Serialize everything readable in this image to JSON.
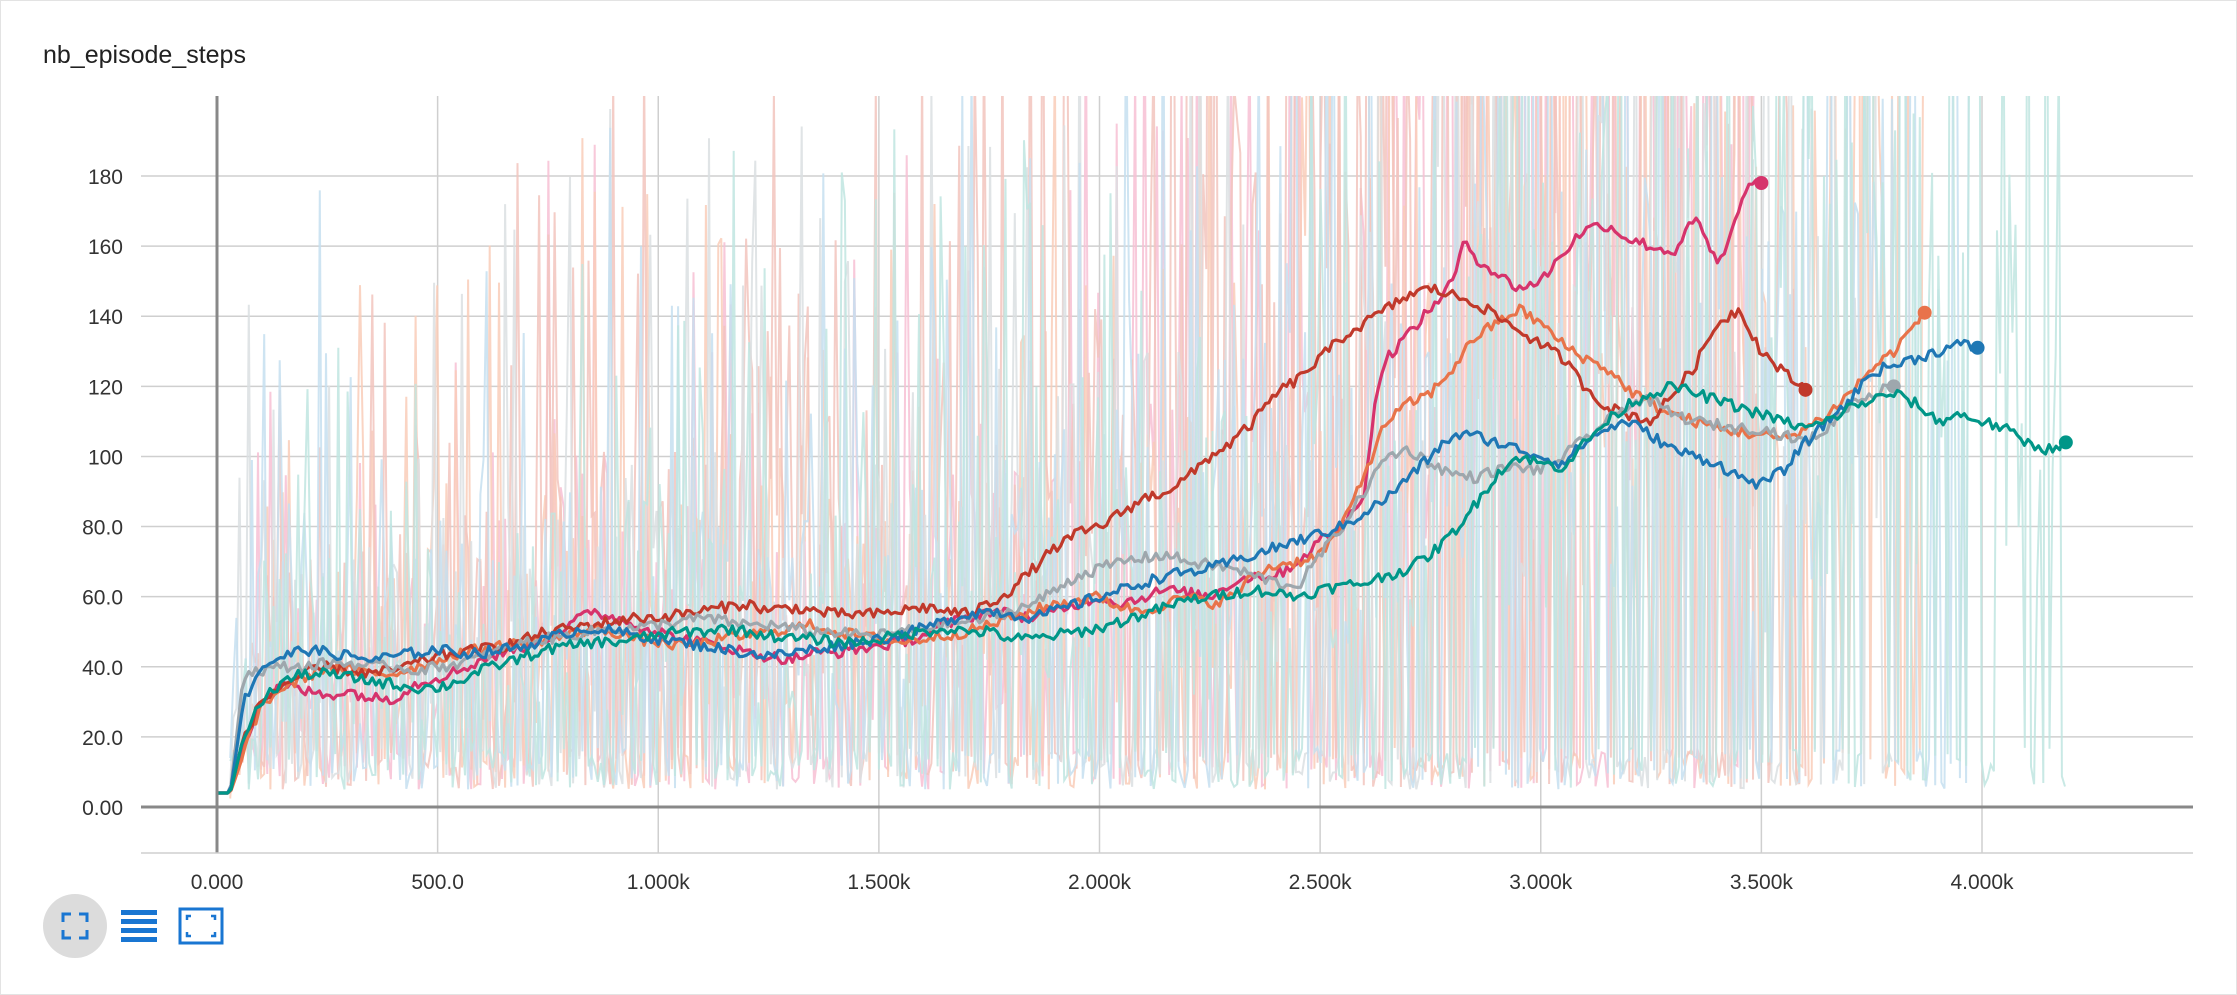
{
  "card": {
    "title": "nb_episode_steps"
  },
  "toolbar": {
    "buttons": [
      {
        "icon": "fullscreen-icon",
        "active": true
      },
      {
        "icon": "list-icon",
        "active": false
      },
      {
        "icon": "fit-domain-icon",
        "active": false
      }
    ],
    "icon_color": "#1976d2"
  },
  "chart_data": {
    "type": "line",
    "title": "nb_episode_steps",
    "xlabel": "",
    "ylabel": "",
    "xlim": [
      -150,
      4500
    ],
    "ylim": [
      -13,
      202
    ],
    "x_ticks": [
      0,
      500,
      1000,
      1500,
      2000,
      2500,
      3000,
      3500,
      4000
    ],
    "x_tick_labels": [
      "0.000",
      "500.0",
      "1.000k",
      "1.500k",
      "2.000k",
      "2.500k",
      "3.000k",
      "3.500k",
      "4.000k"
    ],
    "y_ticks": [
      0,
      20,
      40,
      60,
      80,
      100,
      120,
      140,
      160,
      180
    ],
    "y_tick_labels": [
      "0.00",
      "20.0",
      "40.0",
      "60.0",
      "80.0",
      "100",
      "120",
      "140",
      "160",
      "180"
    ],
    "grid": true,
    "legend": "none",
    "series": [
      {
        "color": "#d6336c",
        "raw_color": "#f7bfd3",
        "x": [
          0,
          30,
          60,
          100,
          150,
          200,
          250,
          300,
          350,
          400,
          450,
          500,
          550,
          600,
          650,
          700,
          750,
          800,
          850,
          900,
          950,
          1000,
          1050,
          1100,
          1150,
          1200,
          1250,
          1300,
          1350,
          1400,
          1450,
          1500,
          1550,
          1600,
          1650,
          1700,
          1750,
          1800,
          1850,
          1900,
          1950,
          2000,
          2050,
          2100,
          2150,
          2200,
          2250,
          2300,
          2350,
          2400,
          2450,
          2500,
          2550,
          2600,
          2630,
          2650,
          2700,
          2750,
          2800,
          2830,
          2850,
          2900,
          2950,
          3000,
          3050,
          3100,
          3150,
          3200,
          3250,
          3300,
          3350,
          3400,
          3420,
          3450,
          3480,
          3500
        ],
        "y": [
          4,
          4,
          18,
          30,
          35,
          33,
          32,
          33,
          31,
          31,
          35,
          37,
          39,
          42,
          44,
          46,
          48,
          52,
          56,
          54,
          52,
          50,
          48,
          47,
          46,
          44,
          43,
          42,
          44,
          44,
          45,
          46,
          47,
          49,
          52,
          54,
          56,
          55,
          54,
          56,
          58,
          60,
          58,
          60,
          62,
          61,
          60,
          64,
          66,
          66,
          70,
          76,
          80,
          90,
          120,
          128,
          135,
          142,
          150,
          162,
          157,
          152,
          148,
          150,
          158,
          165,
          166,
          162,
          160,
          158,
          168,
          155,
          158,
          172,
          178,
          178
        ]
      },
      {
        "color": "#e8734a",
        "raw_color": "#f9cdb8",
        "x": [
          0,
          30,
          60,
          100,
          150,
          200,
          250,
          300,
          350,
          400,
          450,
          500,
          550,
          600,
          650,
          700,
          750,
          800,
          850,
          900,
          950,
          1000,
          1050,
          1100,
          1150,
          1200,
          1250,
          1300,
          1350,
          1400,
          1450,
          1500,
          1550,
          1600,
          1650,
          1700,
          1750,
          1800,
          1850,
          1900,
          1950,
          2000,
          2050,
          2100,
          2150,
          2200,
          2250,
          2300,
          2350,
          2400,
          2450,
          2500,
          2550,
          2600,
          2650,
          2700,
          2750,
          2800,
          2850,
          2900,
          2950,
          3000,
          3050,
          3100,
          3150,
          3200,
          3250,
          3300,
          3350,
          3400,
          3450,
          3500,
          3550,
          3600,
          3650,
          3700,
          3750,
          3800,
          3850,
          3870
        ],
        "y": [
          4,
          4,
          15,
          29,
          34,
          37,
          40,
          39,
          38,
          38,
          40,
          42,
          44,
          45,
          46,
          47,
          48,
          49,
          51,
          50,
          48,
          47,
          46,
          47,
          48,
          49,
          50,
          51,
          52,
          50,
          49,
          48,
          47,
          48,
          49,
          50,
          52,
          54,
          56,
          58,
          59,
          60,
          57,
          56,
          58,
          60,
          58,
          60,
          66,
          69,
          70,
          72,
          80,
          95,
          110,
          115,
          118,
          125,
          134,
          138,
          142,
          138,
          132,
          128,
          125,
          119,
          115,
          112,
          110,
          108,
          107,
          106,
          105,
          108,
          112,
          118,
          125,
          130,
          138,
          141
        ]
      },
      {
        "color": "#c0392b",
        "raw_color": "#f2c4bd",
        "x": [
          0,
          30,
          60,
          100,
          150,
          200,
          250,
          300,
          350,
          400,
          450,
          500,
          550,
          600,
          650,
          700,
          750,
          800,
          850,
          900,
          950,
          1000,
          1050,
          1100,
          1150,
          1200,
          1250,
          1300,
          1350,
          1400,
          1450,
          1500,
          1550,
          1600,
          1650,
          1700,
          1750,
          1800,
          1850,
          1900,
          1950,
          2000,
          2050,
          2100,
          2150,
          2200,
          2250,
          2300,
          2350,
          2400,
          2450,
          2500,
          2550,
          2600,
          2650,
          2700,
          2750,
          2800,
          2850,
          2900,
          2950,
          3000,
          3050,
          3100,
          3150,
          3200,
          3250,
          3300,
          3350,
          3400,
          3450,
          3500,
          3550,
          3600
        ],
        "y": [
          4,
          4,
          20,
          30,
          35,
          38,
          40,
          39,
          38,
          39,
          41,
          43,
          44,
          45,
          46,
          48,
          50,
          51,
          52,
          53,
          54,
          54,
          55,
          56,
          57,
          58,
          56,
          57,
          56,
          55,
          55,
          55,
          56,
          57,
          56,
          55,
          58,
          62,
          68,
          74,
          78,
          80,
          84,
          88,
          90,
          94,
          100,
          104,
          110,
          118,
          122,
          128,
          134,
          138,
          142,
          146,
          148,
          146,
          144,
          140,
          136,
          132,
          128,
          120,
          114,
          112,
          110,
          118,
          126,
          138,
          142,
          130,
          124,
          119
        ]
      },
      {
        "color": "#9ea7ad",
        "raw_color": "#dadfe2",
        "x": [
          0,
          30,
          60,
          100,
          150,
          200,
          250,
          300,
          350,
          400,
          450,
          500,
          550,
          600,
          650,
          700,
          750,
          800,
          850,
          900,
          950,
          1000,
          1050,
          1100,
          1150,
          1200,
          1250,
          1300,
          1350,
          1400,
          1450,
          1500,
          1550,
          1600,
          1650,
          1700,
          1750,
          1800,
          1850,
          1900,
          1950,
          2000,
          2050,
          2100,
          2150,
          2200,
          2250,
          2300,
          2350,
          2400,
          2450,
          2500,
          2550,
          2600,
          2650,
          2700,
          2750,
          2800,
          2850,
          2900,
          2950,
          3000,
          3050,
          3100,
          3150,
          3200,
          3250,
          3300,
          3350,
          3400,
          3450,
          3500,
          3550,
          3600,
          3650,
          3700,
          3750,
          3800
        ],
        "y": [
          4,
          4,
          38,
          39,
          40,
          40,
          41,
          41,
          40,
          40,
          39,
          40,
          41,
          43,
          45,
          47,
          48,
          49,
          50,
          51,
          51,
          52,
          53,
          54,
          53,
          52,
          52,
          51,
          50,
          50,
          49,
          49,
          50,
          51,
          52,
          53,
          54,
          56,
          58,
          62,
          66,
          68,
          70,
          71,
          72,
          70,
          69,
          68,
          66,
          64,
          63,
          72,
          80,
          90,
          100,
          102,
          98,
          95,
          94,
          96,
          97,
          96,
          100,
          105,
          110,
          115,
          116,
          112,
          110,
          109,
          108,
          108,
          106,
          104,
          108,
          115,
          118,
          120
        ]
      },
      {
        "color": "#1f77b4",
        "raw_color": "#c6dff0",
        "x": [
          0,
          30,
          60,
          100,
          150,
          200,
          250,
          300,
          350,
          400,
          450,
          500,
          550,
          600,
          650,
          700,
          750,
          800,
          850,
          900,
          950,
          1000,
          1050,
          1100,
          1150,
          1200,
          1250,
          1300,
          1350,
          1400,
          1450,
          1500,
          1550,
          1600,
          1650,
          1700,
          1750,
          1800,
          1850,
          1900,
          1950,
          2000,
          2050,
          2100,
          2150,
          2200,
          2250,
          2300,
          2350,
          2400,
          2450,
          2500,
          2550,
          2600,
          2650,
          2700,
          2750,
          2800,
          2850,
          2900,
          2950,
          3000,
          3050,
          3100,
          3150,
          3200,
          3250,
          3300,
          3350,
          3400,
          3450,
          3500,
          3550,
          3600,
          3650,
          3700,
          3750,
          3800,
          3850,
          3900,
          3950,
          3990
        ],
        "y": [
          4,
          4,
          30,
          40,
          43,
          45,
          44,
          43,
          42,
          43,
          44,
          45,
          44,
          44,
          45,
          46,
          48,
          50,
          51,
          50,
          49,
          48,
          47,
          46,
          45,
          44,
          43,
          44,
          45,
          46,
          47,
          48,
          49,
          51,
          53,
          55,
          56,
          55,
          54,
          56,
          58,
          60,
          62,
          64,
          66,
          67,
          68,
          70,
          72,
          74,
          76,
          78,
          80,
          84,
          88,
          94,
          100,
          106,
          106,
          104,
          102,
          100,
          98,
          104,
          108,
          110,
          106,
          102,
          100,
          98,
          94,
          92,
          96,
          104,
          110,
          116,
          124,
          126,
          128,
          130,
          132,
          131
        ]
      },
      {
        "color": "#009688",
        "raw_color": "#bfe5e0",
        "x": [
          0,
          30,
          60,
          100,
          150,
          200,
          250,
          300,
          350,
          400,
          450,
          500,
          550,
          600,
          650,
          700,
          750,
          800,
          850,
          900,
          950,
          1000,
          1050,
          1100,
          1150,
          1200,
          1250,
          1300,
          1350,
          1400,
          1450,
          1500,
          1550,
          1600,
          1650,
          1700,
          1750,
          1800,
          1850,
          1900,
          1950,
          2000,
          2050,
          2100,
          2150,
          2200,
          2250,
          2300,
          2350,
          2400,
          2450,
          2500,
          2550,
          2600,
          2650,
          2700,
          2750,
          2800,
          2850,
          2900,
          2950,
          3000,
          3050,
          3100,
          3150,
          3200,
          3250,
          3300,
          3350,
          3400,
          3450,
          3500,
          3550,
          3600,
          3650,
          3700,
          3750,
          3800,
          3850,
          3900,
          3950,
          4000,
          4050,
          4100,
          4150,
          4190
        ],
        "y": [
          4,
          4,
          20,
          30,
          36,
          38,
          38,
          37,
          36,
          35,
          34,
          34,
          36,
          39,
          41,
          43,
          45,
          46,
          47,
          47,
          48,
          49,
          50,
          50,
          51,
          50,
          49,
          48,
          48,
          47,
          47,
          48,
          49,
          50,
          51,
          50,
          50,
          48,
          48,
          49,
          50,
          51,
          53,
          55,
          57,
          59,
          60,
          61,
          62,
          61,
          60,
          62,
          63,
          64,
          66,
          68,
          72,
          78,
          86,
          95,
          100,
          98,
          97,
          104,
          110,
          115,
          118,
          120,
          118,
          116,
          114,
          112,
          110,
          108,
          110,
          114,
          116,
          118,
          115,
          110,
          112,
          110,
          108,
          104,
          102,
          104
        ]
      }
    ]
  }
}
